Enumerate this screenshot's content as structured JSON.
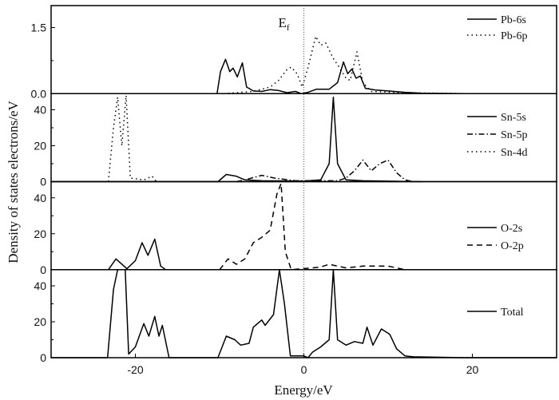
{
  "chart_data": {
    "type": "line",
    "xlabel": "Energy/eV",
    "ylabel": "Density of states electrons/eV",
    "xlim": [
      -30,
      30
    ],
    "xticks": [
      -20,
      0,
      20
    ],
    "fermi_label": "E",
    "fermi_label_sub": "f",
    "fermi_energy": 0,
    "grid": false,
    "legend_placement": "right",
    "panels": [
      {
        "ylim": [
          0,
          2.0
        ],
        "yticks": [
          "0.0",
          "1.5"
        ],
        "ytick_values": [
          0,
          1.5
        ],
        "series": [
          {
            "name": "Pb-6s",
            "style": "solid",
            "points": [
              [
                -30,
                0
              ],
              [
                -10.3,
                0
              ],
              [
                -9.9,
                0.5
              ],
              [
                -9.3,
                0.78
              ],
              [
                -8.8,
                0.5
              ],
              [
                -8.4,
                0.58
              ],
              [
                -7.9,
                0.38
              ],
              [
                -7.3,
                0.7
              ],
              [
                -6.8,
                0.15
              ],
              [
                -6,
                0.06
              ],
              [
                -5,
                0.05
              ],
              [
                -4,
                0.09
              ],
              [
                -3,
                0.07
              ],
              [
                -2,
                0.02
              ],
              [
                -1,
                0.05
              ],
              [
                -0.3,
                0
              ],
              [
                0.5,
                0.03
              ],
              [
                1.5,
                0.1
              ],
              [
                3,
                0.1
              ],
              [
                4,
                0.25
              ],
              [
                4.7,
                0.72
              ],
              [
                5.2,
                0.45
              ],
              [
                5.7,
                0.56
              ],
              [
                6.2,
                0.35
              ],
              [
                6.7,
                0.4
              ],
              [
                7.3,
                0.12
              ],
              [
                8.5,
                0.08
              ],
              [
                10,
                0.06
              ],
              [
                12,
                0.03
              ],
              [
                14,
                0.01
              ],
              [
                19,
                0
              ]
            ]
          },
          {
            "name": "Pb-6p",
            "style": "dotted",
            "points": [
              [
                -9.5,
                0
              ],
              [
                -6,
                0.05
              ],
              [
                -4,
                0.15
              ],
              [
                -3,
                0.3
              ],
              [
                -2,
                0.55
              ],
              [
                -1.5,
                0.6
              ],
              [
                -0.8,
                0.45
              ],
              [
                -0.2,
                0.15
              ],
              [
                0.5,
                0.6
              ],
              [
                1.4,
                1.3
              ],
              [
                2,
                1.1
              ],
              [
                2.6,
                1.15
              ],
              [
                3.5,
                0.8
              ],
              [
                4.2,
                0.6
              ],
              [
                5,
                0.35
              ],
              [
                5.5,
                0.3
              ],
              [
                6.3,
                0.95
              ],
              [
                7,
                0.25
              ],
              [
                8,
                0.05
              ],
              [
                12,
                0.02
              ],
              [
                19,
                0
              ]
            ]
          }
        ]
      },
      {
        "ylim": [
          0,
          49
        ],
        "yticks": [
          "0",
          "20",
          "40"
        ],
        "ytick_values": [
          0,
          20,
          40
        ],
        "series": [
          {
            "name": "Sn-5s",
            "style": "solid",
            "points": [
              [
                -30,
                0
              ],
              [
                -10.2,
                0
              ],
              [
                -9.2,
                4
              ],
              [
                -8,
                3
              ],
              [
                -7,
                1
              ],
              [
                -5,
                0.5
              ],
              [
                0,
                0.3
              ],
              [
                2,
                1
              ],
              [
                3,
                10
              ],
              [
                3.5,
                47
              ],
              [
                4,
                10
              ],
              [
                5,
                1
              ],
              [
                7,
                0.5
              ],
              [
                14,
                0
              ]
            ]
          },
          {
            "name": "Sn-5p",
            "style": "dashdot",
            "points": [
              [
                -8,
                0
              ],
              [
                -7,
                1
              ],
              [
                -5,
                3.5
              ],
              [
                -3.5,
                2
              ],
              [
                -1,
                0.5
              ],
              [
                4,
                0.5
              ],
              [
                5,
                2
              ],
              [
                6,
                6
              ],
              [
                7,
                12
              ],
              [
                8,
                6
              ],
              [
                9,
                10
              ],
              [
                10,
                12
              ],
              [
                11,
                5
              ],
              [
                12,
                1
              ],
              [
                13,
                0
              ]
            ]
          },
          {
            "name": "Sn-4d",
            "style": "dotted",
            "points": [
              [
                -23.2,
                0
              ],
              [
                -22.6,
                30
              ],
              [
                -22.1,
                47
              ],
              [
                -21.6,
                20
              ],
              [
                -21.1,
                48
              ],
              [
                -20.6,
                2
              ],
              [
                -19,
                1
              ],
              [
                -18,
                3
              ],
              [
                -17.5,
                0
              ]
            ]
          }
        ]
      },
      {
        "ylim": [
          0,
          49
        ],
        "yticks": [
          "0",
          "20",
          "40"
        ],
        "ytick_values": [
          0,
          20,
          40
        ],
        "series": [
          {
            "name": "O-2s",
            "style": "solid",
            "points": [
              [
                -30,
                0
              ],
              [
                -23.2,
                0
              ],
              [
                -22.3,
                6
              ],
              [
                -21,
                0.5
              ],
              [
                -20,
                5
              ],
              [
                -19.2,
                15
              ],
              [
                -18.5,
                8
              ],
              [
                -17.7,
                17
              ],
              [
                -17,
                2
              ],
              [
                -16.4,
                0
              ],
              [
                30,
                0
              ]
            ]
          },
          {
            "name": "O-2p",
            "style": "dashed",
            "points": [
              [
                -10,
                0
              ],
              [
                -9,
                6
              ],
              [
                -8,
                3
              ],
              [
                -7,
                6
              ],
              [
                -6,
                15
              ],
              [
                -5,
                18
              ],
              [
                -4,
                22
              ],
              [
                -3.2,
                42
              ],
              [
                -2.7,
                48
              ],
              [
                -2.2,
                10
              ],
              [
                -1.5,
                0
              ],
              [
                1,
                1
              ],
              [
                2,
                1.5
              ],
              [
                3,
                3
              ],
              [
                4,
                2
              ],
              [
                5,
                1
              ],
              [
                7,
                2
              ],
              [
                9,
                2
              ],
              [
                10,
                2
              ],
              [
                11,
                1
              ],
              [
                12,
                0
              ]
            ]
          }
        ]
      },
      {
        "ylim": [
          0,
          49
        ],
        "yticks": [
          "0",
          "20",
          "40"
        ],
        "ytick_values": [
          0,
          20,
          40
        ],
        "series": [
          {
            "name": "Total",
            "style": "solid",
            "points": [
              [
                -30,
                0
              ],
              [
                -23.3,
                0
              ],
              [
                -22.6,
                38
              ],
              [
                -22.1,
                49
              ],
              [
                -21.2,
                49
              ],
              [
                -20.8,
                2
              ],
              [
                -20,
                6
              ],
              [
                -19,
                19
              ],
              [
                -18.4,
                12
              ],
              [
                -17.7,
                23
              ],
              [
                -17.2,
                12
              ],
              [
                -16.8,
                18
              ],
              [
                -16,
                0
              ],
              [
                -10.2,
                0
              ],
              [
                -9.2,
                12
              ],
              [
                -8.2,
                10
              ],
              [
                -7.5,
                7
              ],
              [
                -6.5,
                8
              ],
              [
                -6,
                17
              ],
              [
                -5,
                21
              ],
              [
                -4.6,
                18
              ],
              [
                -3.6,
                24
              ],
              [
                -2.9,
                49
              ],
              [
                -2.3,
                30
              ],
              [
                -1.6,
                1
              ],
              [
                0,
                1
              ],
              [
                0.5,
                0
              ],
              [
                1,
                3
              ],
              [
                2,
                6
              ],
              [
                3,
                10
              ],
              [
                3.5,
                49
              ],
              [
                4,
                10
              ],
              [
                5,
                7
              ],
              [
                6,
                9
              ],
              [
                7,
                8
              ],
              [
                7.5,
                17
              ],
              [
                8.2,
                7
              ],
              [
                9.2,
                16
              ],
              [
                10.2,
                13
              ],
              [
                11,
                5
              ],
              [
                12,
                1
              ],
              [
                13,
                0.5
              ],
              [
                19,
                0
              ],
              [
                30,
                0
              ]
            ]
          }
        ]
      }
    ]
  }
}
